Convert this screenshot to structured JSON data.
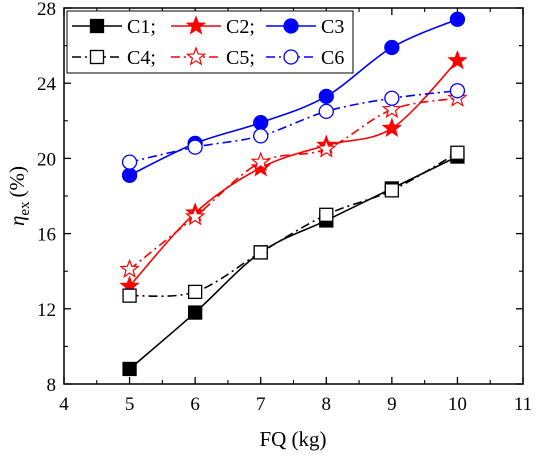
{
  "chart_data": {
    "type": "line",
    "title": "",
    "xlabel": "FQ (kg)",
    "ylabel_symbol": "η",
    "ylabel_subscript": "ex",
    "ylabel_unit": "(%)",
    "xlim": [
      4,
      11
    ],
    "ylim": [
      8,
      28
    ],
    "xticks": [
      4,
      5,
      6,
      7,
      8,
      9,
      10,
      11
    ],
    "yticks": [
      8,
      12,
      16,
      20,
      24,
      28
    ],
    "x": [
      5,
      6,
      7,
      8,
      9,
      10
    ],
    "legend_position": "top-left",
    "series": [
      {
        "name": "C1;",
        "values": [
          8.8,
          11.8,
          15.0,
          16.7,
          18.4,
          20.1
        ],
        "color": "#000000",
        "marker": "square",
        "filled": true,
        "line": "solid"
      },
      {
        "name": "C2;",
        "values": [
          13.2,
          17.1,
          19.5,
          20.7,
          21.6,
          25.2
        ],
        "color": "#ff0000",
        "marker": "star",
        "filled": true,
        "line": "solid"
      },
      {
        "name": "C3",
        "values": [
          19.1,
          20.8,
          21.9,
          23.3,
          25.9,
          27.4
        ],
        "color": "#0000ff",
        "marker": "circle",
        "filled": true,
        "line": "solid"
      },
      {
        "name": "C4;",
        "values": [
          12.7,
          12.9,
          15.0,
          17.0,
          18.3,
          20.3
        ],
        "color": "#000000",
        "marker": "square",
        "filled": false,
        "line": "dashdot"
      },
      {
        "name": "C5;",
        "values": [
          14.1,
          16.9,
          19.8,
          20.5,
          22.6,
          23.2
        ],
        "color": "#ff0000",
        "marker": "star",
        "filled": false,
        "line": "dashdot"
      },
      {
        "name": "C6",
        "values": [
          19.8,
          20.6,
          21.2,
          22.5,
          23.2,
          23.6
        ],
        "color": "#0000ff",
        "marker": "circle",
        "filled": false,
        "line": "dashdot"
      }
    ]
  }
}
